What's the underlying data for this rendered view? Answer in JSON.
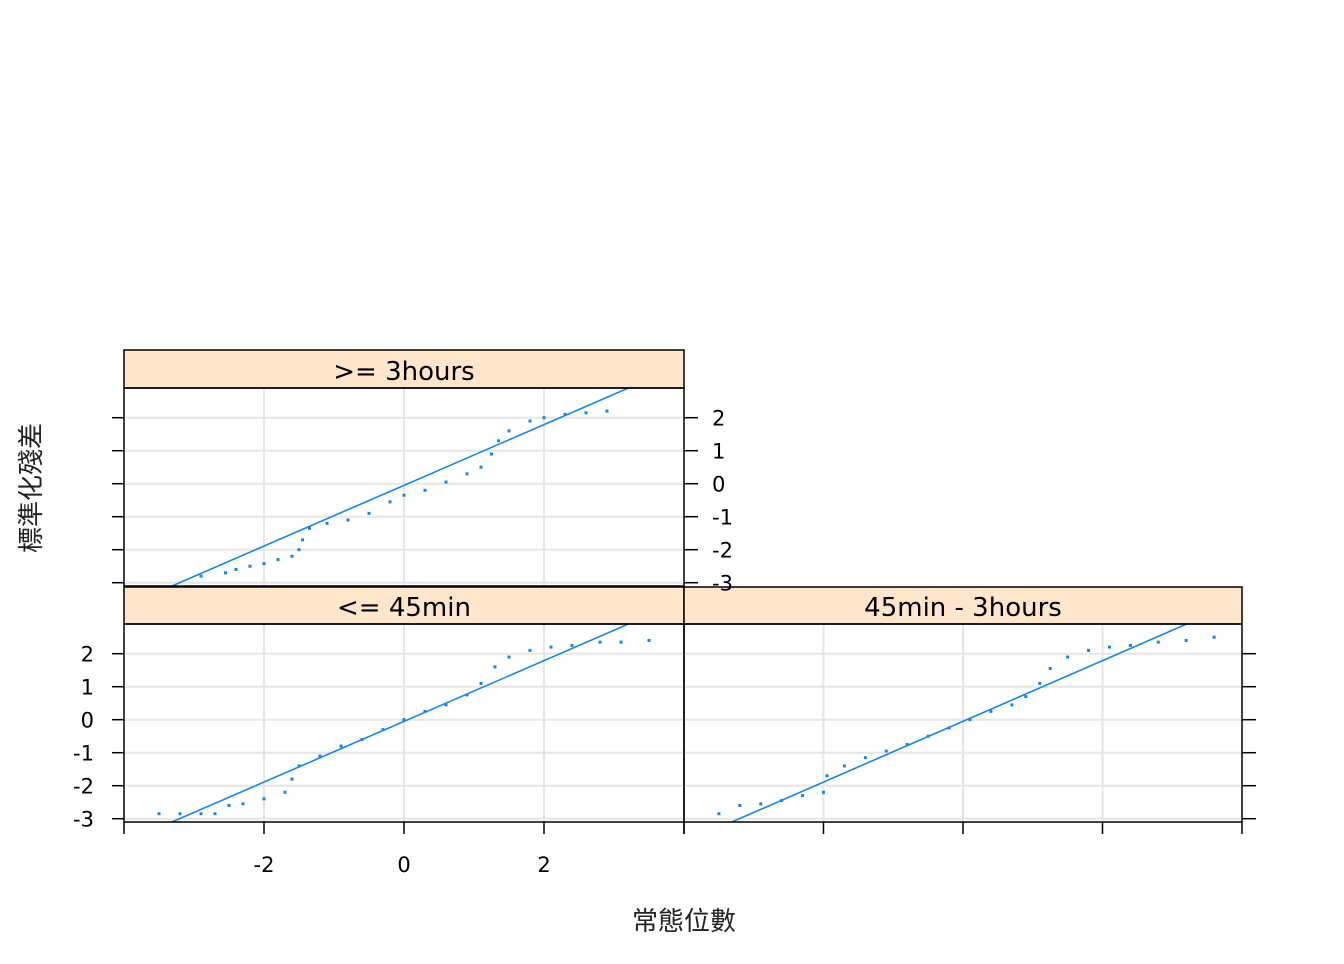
{
  "chart_data": {
    "type": "scatter",
    "subtype": "trellis normal QQ plot with reference lines",
    "xlabel": "常態位數",
    "ylabel": "標準化殘差",
    "xlim": [
      -4,
      4
    ],
    "ylim": [
      -3.1,
      2.9
    ],
    "x_ticks": [
      -2,
      0,
      2
    ],
    "y_ticks": [
      -3,
      -2,
      -1,
      0,
      1,
      2
    ],
    "x_tick_labels": [
      "-2",
      "0",
      "2"
    ],
    "y_tick_labels": [
      "-3",
      "-2",
      "-1",
      "0",
      "1",
      "2"
    ],
    "grid": true,
    "colors": {
      "points": "#1a85e0",
      "line": "#1a85e0",
      "strip": "#ffe5cc",
      "grid": "#e6e6e6",
      "frame": "#000000"
    },
    "panels": [
      {
        "strip_label": ">= 3hours",
        "row": "top",
        "col": "left",
        "ref_line": {
          "intercept": -0.05,
          "slope": 0.92
        },
        "points": [
          [
            -2.9,
            -2.8
          ],
          [
            -2.55,
            -2.7
          ],
          [
            -2.4,
            -2.6
          ],
          [
            -2.2,
            -2.5
          ],
          [
            -2.0,
            -2.42
          ],
          [
            -1.8,
            -2.3
          ],
          [
            -1.6,
            -2.2
          ],
          [
            -1.5,
            -2.0
          ],
          [
            -1.45,
            -1.7
          ],
          [
            -1.35,
            -1.35
          ],
          [
            -1.1,
            -1.2
          ],
          [
            -0.8,
            -1.1
          ],
          [
            -0.5,
            -0.9
          ],
          [
            -0.2,
            -0.55
          ],
          [
            0.0,
            -0.35
          ],
          [
            0.3,
            -0.2
          ],
          [
            0.6,
            0.05
          ],
          [
            0.9,
            0.3
          ],
          [
            1.1,
            0.5
          ],
          [
            1.25,
            0.9
          ],
          [
            1.35,
            1.3
          ],
          [
            1.5,
            1.6
          ],
          [
            1.8,
            1.9
          ],
          [
            2.0,
            2.0
          ],
          [
            2.3,
            2.1
          ],
          [
            2.6,
            2.15
          ],
          [
            2.9,
            2.2
          ]
        ]
      },
      {
        "strip_label": "<= 45min",
        "row": "bottom",
        "col": "left",
        "ref_line": {
          "intercept": -0.05,
          "slope": 0.92
        },
        "points": [
          [
            -3.5,
            -2.85
          ],
          [
            -3.2,
            -2.85
          ],
          [
            -2.9,
            -2.85
          ],
          [
            -2.7,
            -2.85
          ],
          [
            -2.5,
            -2.6
          ],
          [
            -2.3,
            -2.55
          ],
          [
            -2.0,
            -2.4
          ],
          [
            -1.7,
            -2.2
          ],
          [
            -1.6,
            -1.8
          ],
          [
            -1.5,
            -1.4
          ],
          [
            -1.2,
            -1.1
          ],
          [
            -0.9,
            -0.8
          ],
          [
            -0.6,
            -0.6
          ],
          [
            -0.3,
            -0.3
          ],
          [
            0.0,
            0.0
          ],
          [
            0.3,
            0.25
          ],
          [
            0.6,
            0.45
          ],
          [
            0.9,
            0.75
          ],
          [
            1.1,
            1.1
          ],
          [
            1.3,
            1.6
          ],
          [
            1.5,
            1.9
          ],
          [
            1.8,
            2.1
          ],
          [
            2.1,
            2.2
          ],
          [
            2.4,
            2.25
          ],
          [
            2.8,
            2.35
          ],
          [
            3.1,
            2.35
          ],
          [
            3.5,
            2.4
          ]
        ]
      },
      {
        "strip_label": "45min - 3hours",
        "row": "bottom",
        "col": "right",
        "ref_line": {
          "intercept": -0.05,
          "slope": 0.92
        },
        "points": [
          [
            -3.5,
            -2.85
          ],
          [
            -3.2,
            -2.6
          ],
          [
            -2.9,
            -2.55
          ],
          [
            -2.6,
            -2.45
          ],
          [
            -2.3,
            -2.3
          ],
          [
            -2.0,
            -2.2
          ],
          [
            -1.95,
            -1.7
          ],
          [
            -1.7,
            -1.4
          ],
          [
            -1.4,
            -1.15
          ],
          [
            -1.1,
            -0.95
          ],
          [
            -0.8,
            -0.75
          ],
          [
            -0.5,
            -0.5
          ],
          [
            -0.2,
            -0.25
          ],
          [
            0.1,
            0.0
          ],
          [
            0.4,
            0.25
          ],
          [
            0.7,
            0.45
          ],
          [
            0.9,
            0.7
          ],
          [
            1.1,
            1.1
          ],
          [
            1.25,
            1.55
          ],
          [
            1.5,
            1.9
          ],
          [
            1.8,
            2.1
          ],
          [
            2.1,
            2.2
          ],
          [
            2.4,
            2.25
          ],
          [
            2.8,
            2.35
          ],
          [
            3.2,
            2.4
          ],
          [
            3.6,
            2.5
          ]
        ]
      }
    ]
  }
}
